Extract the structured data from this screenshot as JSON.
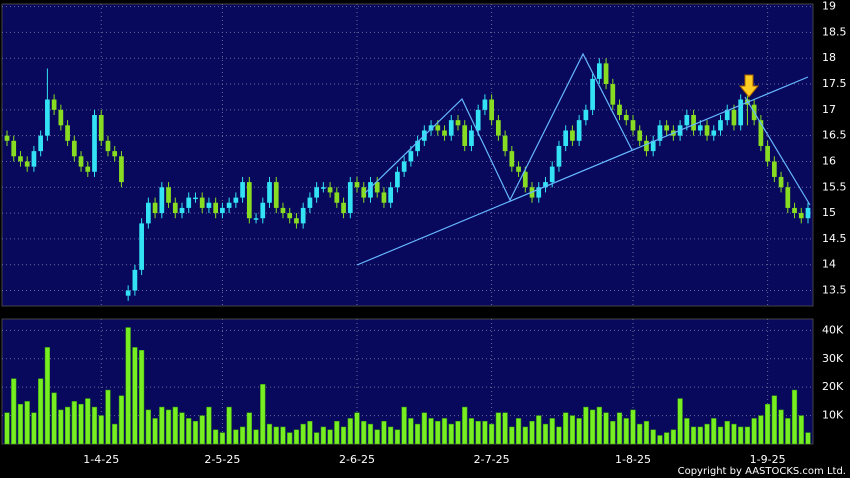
{
  "chart_data": {
    "type": "candlestick",
    "up_color": "#33e3f5",
    "down_color": "#88dd22",
    "volume_color": "#77ee22",
    "grid": true,
    "categories": [
      null,
      null,
      null,
      null,
      null,
      null,
      null,
      null,
      null,
      null,
      null,
      null,
      null,
      null,
      "1-4-25",
      null,
      null,
      null,
      null,
      null,
      null,
      null,
      null,
      null,
      null,
      null,
      null,
      null,
      null,
      null,
      null,
      null,
      "2-5-25",
      null,
      null,
      null,
      null,
      null,
      null,
      null,
      null,
      null,
      null,
      null,
      null,
      null,
      null,
      null,
      null,
      null,
      null,
      null,
      "2-6-25",
      null,
      null,
      null,
      null,
      null,
      null,
      null,
      null,
      null,
      null,
      null,
      null,
      null,
      null,
      null,
      null,
      null,
      null,
      null,
      "2-7-25",
      null,
      null,
      null,
      null,
      null,
      null,
      null,
      null,
      null,
      null,
      null,
      null,
      null,
      null,
      null,
      null,
      null,
      null,
      null,
      null,
      "1-8-25",
      null,
      null,
      null,
      null,
      null,
      null,
      null,
      null,
      null,
      null,
      null,
      null,
      null,
      null,
      null,
      null,
      null,
      null,
      null,
      "1-9-25",
      null,
      null,
      null,
      null,
      null,
      null
    ],
    "open": [
      16.5,
      16.4,
      16.1,
      16.0,
      15.9,
      16.2,
      16.5,
      17.2,
      17.0,
      16.7,
      16.4,
      16.1,
      15.9,
      15.8,
      16.9,
      16.4,
      16.2,
      16.1,
      13.4,
      13.5,
      13.9,
      14.8,
      15.2,
      15.0,
      15.5,
      15.2,
      15.0,
      15.1,
      15.3,
      15.3,
      15.1,
      15.2,
      15.0,
      15.1,
      15.2,
      15.3,
      15.6,
      14.9,
      14.9,
      15.2,
      15.6,
      15.1,
      15.0,
      14.9,
      14.8,
      15.1,
      15.3,
      15.5,
      15.5,
      15.4,
      15.2,
      15.0,
      15.6,
      15.5,
      15.3,
      15.6,
      15.4,
      15.2,
      15.5,
      15.8,
      16.0,
      16.2,
      16.4,
      16.6,
      16.7,
      16.6,
      16.5,
      16.8,
      16.7,
      16.3,
      16.6,
      17.0,
      17.2,
      16.8,
      16.5,
      16.2,
      15.9,
      15.8,
      15.5,
      15.3,
      15.5,
      15.6,
      15.9,
      16.3,
      16.6,
      16.4,
      16.8,
      17.0,
      17.6,
      17.9,
      17.5,
      17.1,
      16.9,
      16.8,
      16.6,
      16.4,
      16.2,
      16.4,
      16.7,
      16.6,
      16.5,
      16.7,
      16.9,
      16.6,
      16.7,
      16.5,
      16.6,
      16.8,
      17.0,
      16.7,
      17.2,
      17.1,
      16.8,
      16.3,
      16.0,
      15.7,
      15.5,
      15.1,
      15.0,
      14.9
    ],
    "high": [
      16.6,
      16.5,
      16.2,
      16.1,
      16.3,
      16.6,
      17.8,
      17.3,
      17.1,
      16.8,
      16.5,
      16.2,
      16.0,
      17.0,
      17.0,
      16.5,
      16.3,
      16.2,
      13.6,
      14.0,
      14.9,
      15.3,
      15.3,
      15.6,
      15.6,
      15.3,
      15.2,
      15.4,
      15.4,
      15.4,
      15.3,
      15.3,
      15.2,
      15.3,
      15.4,
      15.7,
      15.7,
      15.0,
      15.3,
      15.7,
      15.7,
      15.2,
      15.1,
      15.0,
      15.2,
      15.4,
      15.6,
      15.6,
      15.6,
      15.5,
      15.3,
      15.7,
      15.7,
      15.6,
      15.7,
      15.7,
      15.5,
      15.6,
      15.9,
      16.1,
      16.3,
      16.5,
      16.7,
      16.8,
      16.8,
      16.7,
      16.9,
      16.9,
      16.8,
      16.7,
      17.1,
      17.3,
      17.3,
      16.9,
      16.6,
      16.3,
      16.0,
      15.9,
      15.6,
      15.6,
      15.7,
      16.0,
      16.4,
      16.7,
      16.7,
      16.9,
      17.1,
      17.7,
      18.0,
      18.0,
      17.6,
      17.2,
      17.0,
      16.9,
      16.7,
      16.5,
      16.5,
      16.8,
      16.8,
      16.7,
      16.8,
      17.0,
      17.0,
      16.8,
      16.8,
      16.7,
      16.9,
      17.1,
      17.1,
      17.3,
      17.3,
      17.2,
      16.9,
      16.4,
      16.1,
      15.8,
      15.6,
      15.2,
      15.1,
      15.2
    ],
    "low": [
      16.3,
      16.0,
      15.9,
      15.8,
      15.8,
      16.1,
      16.4,
      16.9,
      16.6,
      16.3,
      16.0,
      15.8,
      15.7,
      15.7,
      16.3,
      16.1,
      16.0,
      15.5,
      13.3,
      13.4,
      13.8,
      14.7,
      14.9,
      14.9,
      15.1,
      14.9,
      14.9,
      15.0,
      15.2,
      15.0,
      15.0,
      14.9,
      14.9,
      15.0,
      15.1,
      15.2,
      14.8,
      14.8,
      14.8,
      15.1,
      15.0,
      14.9,
      14.8,
      14.7,
      14.7,
      15.0,
      15.2,
      15.4,
      15.3,
      15.1,
      14.9,
      14.9,
      15.4,
      15.2,
      15.2,
      15.3,
      15.1,
      15.1,
      15.4,
      15.7,
      15.9,
      16.1,
      16.3,
      16.5,
      16.5,
      16.4,
      16.4,
      16.6,
      16.2,
      16.2,
      16.5,
      16.9,
      16.7,
      16.4,
      16.1,
      15.8,
      15.7,
      15.4,
      15.2,
      15.2,
      15.4,
      15.5,
      15.8,
      16.2,
      16.3,
      16.3,
      16.7,
      16.9,
      17.5,
      17.4,
      17.0,
      16.8,
      16.7,
      16.5,
      16.3,
      16.1,
      16.1,
      16.3,
      16.5,
      16.4,
      16.4,
      16.6,
      16.5,
      16.5,
      16.4,
      16.4,
      16.5,
      16.7,
      16.6,
      16.6,
      16.7,
      16.7,
      16.2,
      15.9,
      15.6,
      15.4,
      15.0,
      14.9,
      14.8,
      14.8
    ],
    "close": [
      16.4,
      16.1,
      16.0,
      15.9,
      16.2,
      16.5,
      17.2,
      17.0,
      16.7,
      16.4,
      16.1,
      15.9,
      15.8,
      16.9,
      16.4,
      16.2,
      16.1,
      15.6,
      13.5,
      13.9,
      14.8,
      15.2,
      15.0,
      15.5,
      15.2,
      15.0,
      15.1,
      15.3,
      15.3,
      15.1,
      15.2,
      15.0,
      15.1,
      15.2,
      15.3,
      15.6,
      14.9,
      14.9,
      15.2,
      15.6,
      15.1,
      15.0,
      14.9,
      14.8,
      15.1,
      15.3,
      15.5,
      15.5,
      15.4,
      15.2,
      15.0,
      15.6,
      15.5,
      15.3,
      15.6,
      15.4,
      15.2,
      15.5,
      15.8,
      16.0,
      16.2,
      16.4,
      16.6,
      16.7,
      16.6,
      16.5,
      16.8,
      16.7,
      16.3,
      16.6,
      17.0,
      17.2,
      16.8,
      16.5,
      16.2,
      15.9,
      15.8,
      15.5,
      15.3,
      15.5,
      15.6,
      15.9,
      16.3,
      16.6,
      16.4,
      16.8,
      17.0,
      17.6,
      17.9,
      17.5,
      17.1,
      16.9,
      16.8,
      16.6,
      16.4,
      16.2,
      16.4,
      16.7,
      16.6,
      16.5,
      16.7,
      16.9,
      16.6,
      16.7,
      16.5,
      16.6,
      16.8,
      17.0,
      16.7,
      17.2,
      17.1,
      16.8,
      16.3,
      16.0,
      15.7,
      15.5,
      15.1,
      15.0,
      14.9,
      15.1
    ],
    "volume": [
      11000,
      23000,
      14000,
      15000,
      11000,
      23000,
      34000,
      18000,
      12000,
      13000,
      15000,
      14000,
      16000,
      13000,
      10000,
      19000,
      7000,
      17000,
      41000,
      34000,
      33000,
      12000,
      9000,
      13000,
      12000,
      13000,
      11000,
      9000,
      8000,
      10000,
      13000,
      5000,
      4000,
      13000,
      5000,
      6000,
      11000,
      5000,
      21000,
      7000,
      6000,
      6000,
      4000,
      5000,
      7000,
      8000,
      4000,
      6000,
      5000,
      8000,
      6000,
      9000,
      11000,
      8000,
      7000,
      5000,
      8000,
      6000,
      5000,
      13000,
      9000,
      7000,
      11000,
      9000,
      8000,
      9000,
      7000,
      8000,
      13000,
      9000,
      8000,
      8000,
      7000,
      11000,
      11000,
      6000,
      9000,
      6000,
      8000,
      10000,
      7000,
      9000,
      6000,
      11000,
      10000,
      9000,
      13000,
      12000,
      13000,
      11000,
      8000,
      11000,
      9000,
      12000,
      7000,
      8000,
      5000,
      3000,
      4000,
      5000,
      16000,
      9000,
      6000,
      6000,
      7000,
      9000,
      6000,
      8000,
      7000,
      6000,
      6000,
      9000,
      10000,
      14000,
      17000,
      12000,
      9000,
      19000,
      10000,
      4000
    ],
    "ylim": [
      13.2,
      19.05
    ],
    "yticks": [
      13.5,
      14,
      14.5,
      15,
      15.5,
      16,
      16.5,
      17,
      17.5,
      18,
      18.5,
      19
    ],
    "y2lim": [
      0,
      44000
    ],
    "y2ticks": [
      {
        "value": 10000,
        "label": "10K"
      },
      {
        "value": 20000,
        "label": "20K"
      },
      {
        "value": 30000,
        "label": "30K"
      },
      {
        "value": 40000,
        "label": "40K"
      }
    ],
    "copyright": "Copyright by AASTOCKS.com Ltd."
  }
}
